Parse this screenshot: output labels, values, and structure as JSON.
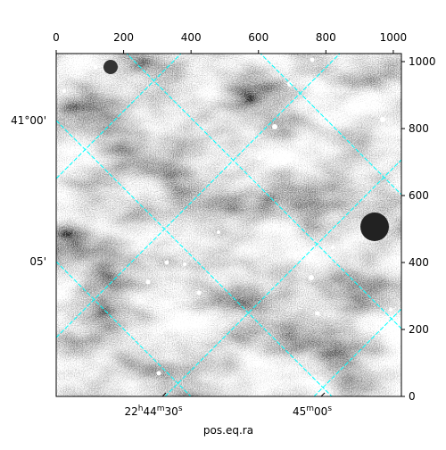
{
  "chart_data": {
    "type": "image",
    "xlim": [
      0,
      1024
    ],
    "ylim": [
      0,
      1024
    ],
    "xticks": [
      0,
      200,
      400,
      600,
      800,
      1000
    ],
    "yticks": [
      0,
      200,
      400,
      600,
      800,
      1000
    ],
    "ra_ticks": [
      "22h44m30s",
      "45m00s"
    ],
    "dec_ticks": [
      "41°00'",
      "05'"
    ],
    "xlabel": "pos.eq.ra",
    "grid_color": "#00ffff"
  }
}
